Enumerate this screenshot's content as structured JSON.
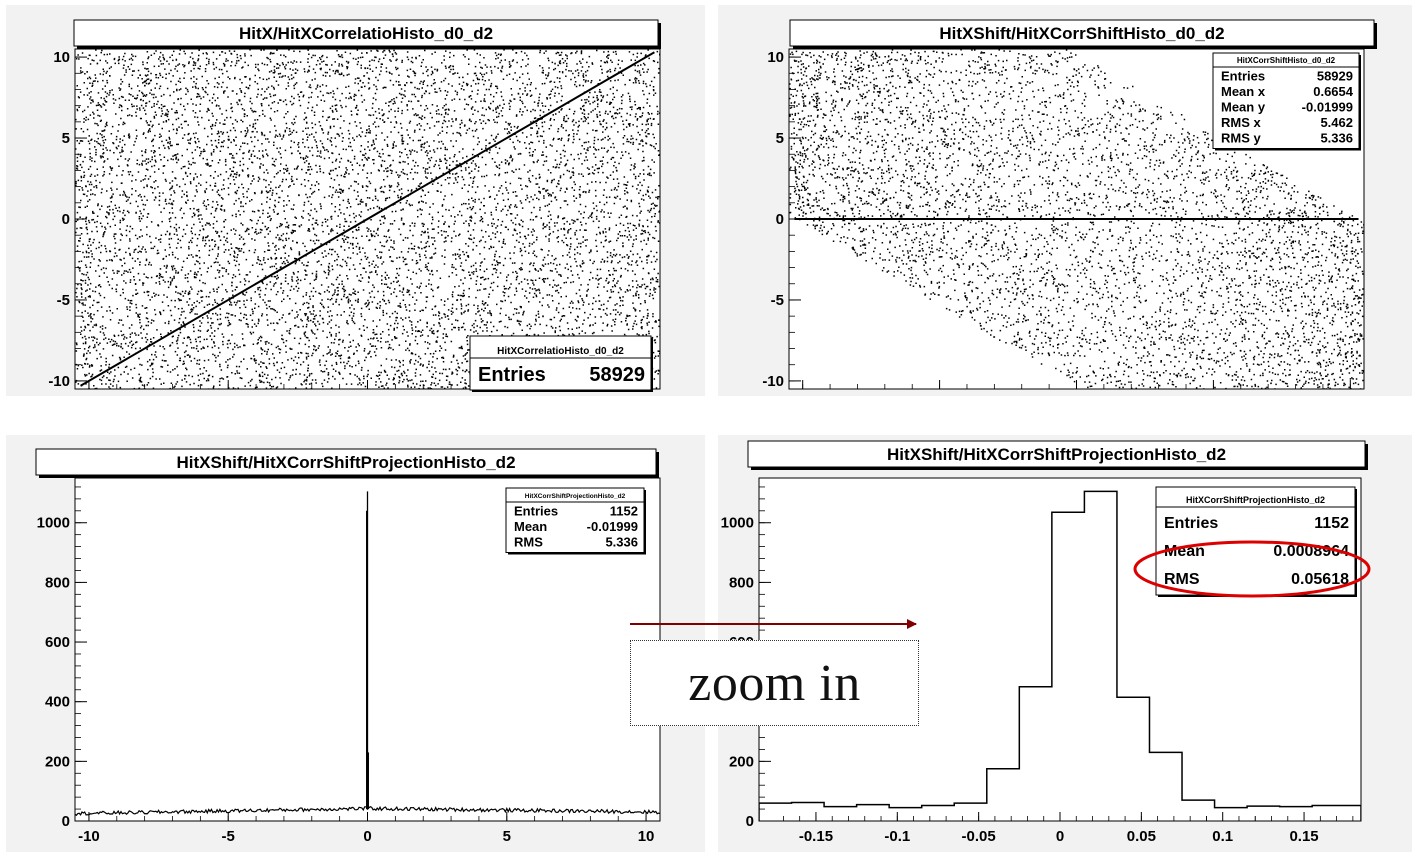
{
  "annotation": {
    "zoom_label": "zoom in"
  },
  "colors": {
    "pad_background": "#f2f2f2",
    "frame": "#000000",
    "arrow": "#7f0000",
    "highlight": "#dd0000"
  },
  "chart_data": [
    {
      "type": "scatter",
      "title": "HitX/HitXCorrelatioHisto_d0_d2",
      "xlim": [
        -10.5,
        10.5
      ],
      "ylim": [
        -10.5,
        10.5
      ],
      "xticks": [
        -10,
        -5,
        0,
        5,
        10
      ],
      "yticks": [
        -10,
        -5,
        0,
        5,
        10
      ],
      "pattern": "uniform random hits over the full square plus a dense correlation line y = x",
      "correlation_line": [
        [
          -10.3,
          -10.3
        ],
        [
          10.3,
          10.3
        ]
      ],
      "legend": {
        "name": "HitXCorrelatioHisto_d0_d2",
        "placement": "bottom-right",
        "rows": [
          {
            "label": "Entries",
            "value": "58929"
          }
        ]
      }
    },
    {
      "type": "scatter",
      "title": "HitXShift/HitXCorrShiftHisto_d0_d2",
      "xlim": [
        -10.5,
        10.5
      ],
      "ylim": [
        -10.5,
        10.5
      ],
      "xticks": [
        -10,
        -5,
        0,
        5,
        10
      ],
      "yticks": [
        -10,
        -5,
        0,
        5,
        10
      ],
      "pattern": "uniform random hits in the band x - 10.3 <= y <= x + 10.3 plus a dense line at y = 0",
      "band_slope": -1,
      "band_halfwidth": 10.3,
      "shift_line": [
        [
          -10.3,
          0
        ],
        [
          10.3,
          0
        ]
      ],
      "legend": {
        "name": "HitXCorrShiftHisto_d0_d2",
        "placement": "top-right",
        "rows": [
          {
            "label": "Entries",
            "value": "58929"
          },
          {
            "label": "Mean x",
            "value": "0.6654"
          },
          {
            "label": "Mean y",
            "value": "-0.01999"
          },
          {
            "label": "RMS x",
            "value": "5.462"
          },
          {
            "label": "RMS y",
            "value": "5.336"
          }
        ]
      }
    },
    {
      "type": "bar",
      "title": "HitXShift/HitXCorrShiftProjectionHisto_d2",
      "xlim": [
        -10.5,
        10.5
      ],
      "ylim": [
        0,
        1150
      ],
      "xticks": [
        -10,
        -5,
        0,
        5,
        10
      ],
      "yticks": [
        0,
        200,
        400,
        600,
        800,
        1000
      ],
      "baseline": {
        "x_from": -10.5,
        "x_to": 10.5,
        "level_start": 25,
        "level_middle": 42,
        "level_end": 30,
        "noise": 6
      },
      "peak": [
        {
          "x": -0.03,
          "y": 1040
        },
        {
          "x": 0.0,
          "y": 1105
        },
        {
          "x": 0.03,
          "y": 230
        }
      ],
      "legend": {
        "name": "HitXCorrShiftProjectionHisto_d2",
        "placement": "top-right",
        "rows": [
          {
            "label": "Entries",
            "value": "1152"
          },
          {
            "label": "Mean",
            "value": "-0.01999"
          },
          {
            "label": "RMS",
            "value": "5.336"
          }
        ]
      }
    },
    {
      "type": "bar",
      "title": "HitXShift/HitXCorrShiftProjectionHisto_d2",
      "xlim": [
        -0.185,
        0.185
      ],
      "ylim": [
        0,
        1150
      ],
      "xticks": [
        -0.15,
        -0.1,
        -0.05,
        0,
        0.05,
        0.1,
        0.15
      ],
      "xtick_labels": [
        "-0.15",
        "-0.1",
        "-0.05",
        "0",
        "0.05",
        "0.1",
        "0.15"
      ],
      "yticks": [
        0,
        200,
        400,
        600,
        800,
        1000
      ],
      "bin_edges": [
        -0.185,
        -0.165,
        -0.145,
        -0.125,
        -0.105,
        -0.085,
        -0.065,
        -0.045,
        -0.025,
        -0.005,
        0.015,
        0.035,
        0.055,
        0.075,
        0.095,
        0.115,
        0.135,
        0.155,
        0.185
      ],
      "values": [
        60,
        62,
        48,
        55,
        45,
        52,
        60,
        175,
        450,
        1035,
        1105,
        415,
        230,
        70,
        45,
        50,
        48,
        52
      ],
      "legend": {
        "name": "HitXCorrShiftProjectionHisto_d2",
        "placement": "top-right",
        "rows": [
          {
            "label": "Entries",
            "value": "1152"
          },
          {
            "label": "Mean",
            "value": "0.0008964"
          },
          {
            "label": "RMS",
            "value": "0.05618"
          }
        ]
      },
      "highlighted_row": "Mean"
    }
  ]
}
